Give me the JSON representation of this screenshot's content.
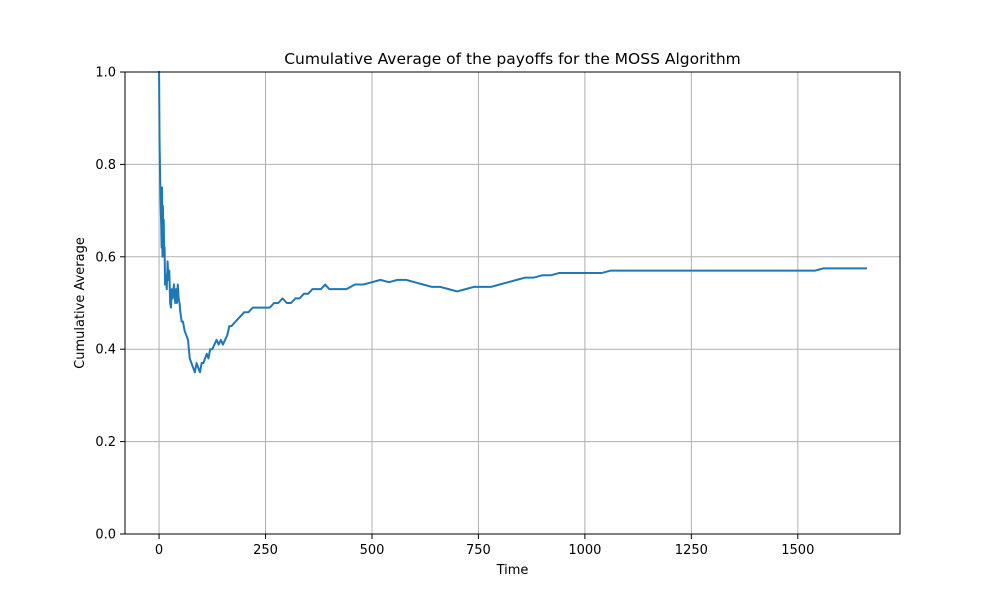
{
  "chart_data": {
    "type": "line",
    "title": "Cumulative Average of the payoffs for the MOSS Algorithm",
    "xlabel": "Time",
    "ylabel": "Cumulative Average",
    "xlim": [
      -80,
      1740
    ],
    "ylim": [
      0.0,
      1.0
    ],
    "xticks": [
      0,
      250,
      500,
      750,
      1000,
      1250,
      1500
    ],
    "xtick_labels": [
      "0",
      "250",
      "500",
      "750",
      "1000",
      "1250",
      "1500"
    ],
    "yticks": [
      0.0,
      0.2,
      0.4,
      0.6,
      0.8,
      1.0
    ],
    "ytick_labels": [
      "0.0",
      "0.2",
      "0.4",
      "0.6",
      "0.8",
      "1.0"
    ],
    "grid": true,
    "line_color": "#1f77b4",
    "series": [
      {
        "x": [
          0,
          1,
          2,
          3,
          4,
          5,
          6,
          7,
          8,
          9,
          10,
          11,
          12,
          13,
          14,
          16,
          18,
          20,
          22,
          24,
          26,
          28,
          30,
          32,
          35,
          38,
          40,
          42,
          44,
          46,
          48,
          50,
          53,
          56,
          60,
          64,
          68,
          72,
          76,
          80,
          84,
          88,
          92,
          96,
          100,
          104,
          108,
          112,
          116,
          120,
          125,
          130,
          135,
          140,
          145,
          150,
          155,
          160,
          165,
          170,
          180,
          190,
          200,
          210,
          220,
          230,
          240,
          250,
          260,
          270,
          280,
          290,
          300,
          310,
          320,
          330,
          340,
          350,
          360,
          370,
          380,
          390,
          400,
          420,
          440,
          460,
          480,
          500,
          520,
          540,
          560,
          580,
          600,
          620,
          640,
          660,
          680,
          700,
          720,
          740,
          760,
          780,
          800,
          820,
          840,
          860,
          880,
          900,
          920,
          940,
          960,
          980,
          1000,
          1020,
          1040,
          1060,
          1080,
          1100,
          1120,
          1140,
          1160,
          1180,
          1200,
          1220,
          1240,
          1260,
          1280,
          1300,
          1320,
          1340,
          1360,
          1380,
          1400,
          1420,
          1440,
          1460,
          1480,
          1500,
          1520,
          1540,
          1560,
          1580,
          1600,
          1620,
          1640,
          1660
        ],
        "y": [
          1.0,
          0.86,
          0.8,
          0.75,
          0.7,
          0.67,
          0.62,
          0.75,
          0.6,
          0.71,
          0.64,
          0.68,
          0.6,
          0.62,
          0.54,
          0.56,
          0.53,
          0.59,
          0.55,
          0.57,
          0.5,
          0.49,
          0.53,
          0.51,
          0.54,
          0.5,
          0.53,
          0.5,
          0.54,
          0.51,
          0.5,
          0.48,
          0.46,
          0.46,
          0.44,
          0.43,
          0.42,
          0.38,
          0.37,
          0.36,
          0.35,
          0.37,
          0.36,
          0.35,
          0.37,
          0.37,
          0.38,
          0.39,
          0.38,
          0.4,
          0.4,
          0.41,
          0.42,
          0.41,
          0.42,
          0.41,
          0.42,
          0.43,
          0.45,
          0.45,
          0.46,
          0.47,
          0.48,
          0.48,
          0.49,
          0.49,
          0.49,
          0.49,
          0.49,
          0.5,
          0.5,
          0.51,
          0.5,
          0.5,
          0.51,
          0.51,
          0.52,
          0.52,
          0.53,
          0.53,
          0.53,
          0.54,
          0.53,
          0.53,
          0.53,
          0.54,
          0.54,
          0.545,
          0.55,
          0.545,
          0.55,
          0.55,
          0.545,
          0.54,
          0.535,
          0.535,
          0.53,
          0.525,
          0.53,
          0.535,
          0.535,
          0.535,
          0.54,
          0.545,
          0.55,
          0.555,
          0.555,
          0.56,
          0.56,
          0.565,
          0.565,
          0.565,
          0.565,
          0.565,
          0.565,
          0.57,
          0.57,
          0.57,
          0.57,
          0.57,
          0.57,
          0.57,
          0.57,
          0.57,
          0.57,
          0.57,
          0.57,
          0.57,
          0.57,
          0.57,
          0.57,
          0.57,
          0.57,
          0.57,
          0.57,
          0.57,
          0.57,
          0.57,
          0.57,
          0.57,
          0.575,
          0.575,
          0.575,
          0.575,
          0.575,
          0.575
        ]
      }
    ]
  }
}
